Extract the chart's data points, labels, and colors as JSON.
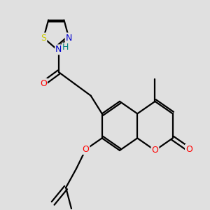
{
  "background_color": "#e0e0e0",
  "bond_color": "#000000",
  "bond_width": 1.6,
  "atom_colors": {
    "O": "#ff0000",
    "N": "#0000cd",
    "S": "#cccc00",
    "H": "#008080",
    "C": "#000000"
  },
  "font_size": 8.5,
  "fig_width": 3.0,
  "fig_height": 3.0,
  "dpi": 100
}
